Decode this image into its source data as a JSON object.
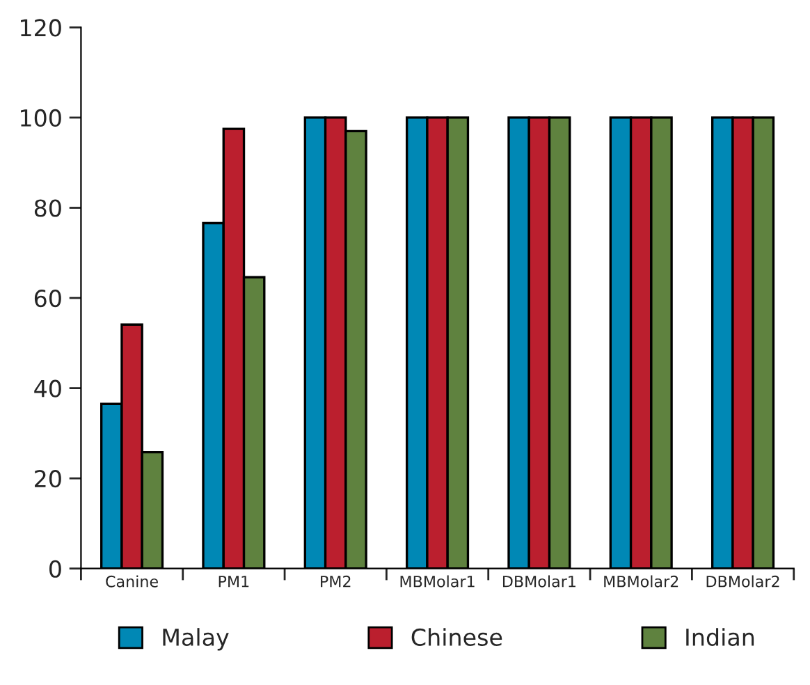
{
  "chart_data": {
    "type": "bar",
    "categories": [
      "Canine",
      "PM1",
      "PM2",
      "MBMolar1",
      "DBMolar1",
      "MBMolar2",
      "DBMolar2"
    ],
    "series": [
      {
        "name": "Malay",
        "color": "#0088b5",
        "values": [
          36.5,
          76.6,
          100,
          100,
          100,
          100,
          100
        ]
      },
      {
        "name": "Chinese",
        "color": "#bb1f2e",
        "values": [
          54.1,
          97.5,
          100,
          100,
          100,
          100,
          100
        ]
      },
      {
        "name": "Indian",
        "color": "#5f823f",
        "values": [
          25.8,
          64.6,
          97.0,
          100,
          100,
          100,
          100
        ]
      }
    ],
    "ylim": [
      0,
      120
    ],
    "yticks": [
      0,
      20,
      40,
      60,
      80,
      100,
      120
    ],
    "grid": false,
    "legend": "bottom"
  }
}
